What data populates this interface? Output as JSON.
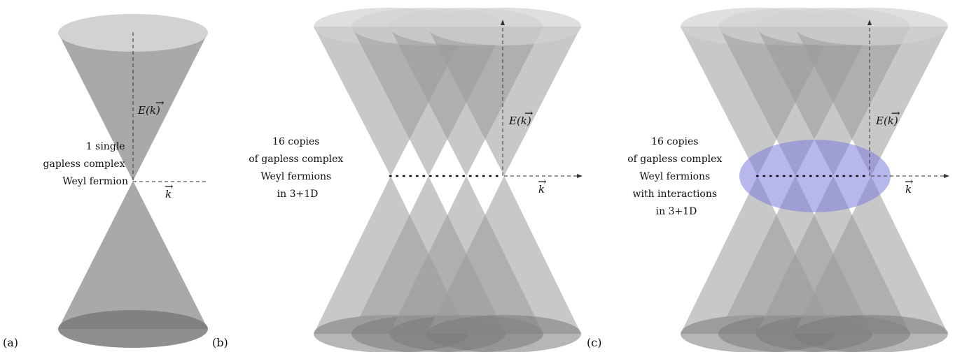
{
  "panels": [
    {
      "tag": "(a)",
      "description_lines": [
        "1 single",
        "gapless complex",
        "Weyl fermion"
      ],
      "energy_label": "E(k)",
      "momentum_label": "k",
      "cone_count": 1,
      "interaction_region": false
    },
    {
      "tag": "(b)",
      "description_lines": [
        "16 copies",
        "of gapless complex",
        "Weyl fermions",
        "in 3+1D"
      ],
      "energy_label": "E(k)",
      "momentum_label": "k",
      "cone_count": 4,
      "interaction_region": false
    },
    {
      "tag": "(c)",
      "description_lines": [
        "16 copies",
        "of gapless complex",
        "Weyl fermions",
        "with interactions",
        "in 3+1D"
      ],
      "energy_label": "E(k)",
      "momentum_label": "k",
      "cone_count": 4,
      "interaction_region": true
    }
  ],
  "colors": {
    "cone_fill": "#9a9a9a",
    "cone_top": "#d2d2d2",
    "cone_bottom": "#7a7a7a",
    "interaction_fill": "#7b7be0",
    "axis": "#333333"
  }
}
